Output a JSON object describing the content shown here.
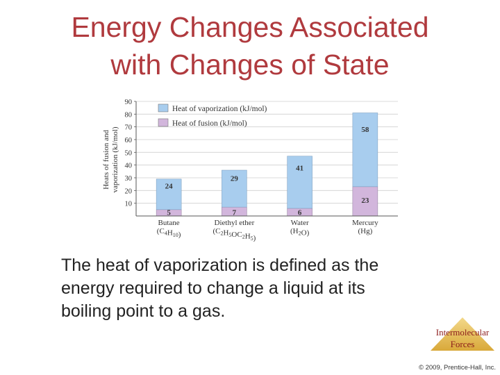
{
  "slide": {
    "title_line1": "Energy Changes Associated",
    "title_line2": "with Changes of State",
    "body_line1": "The heat of vaporization is defined as the",
    "body_line2": "energy required to change a liquid at its",
    "body_line3": "boiling point to a gas.",
    "badge_line1": "Intermolecular",
    "badge_line2": "Forces",
    "copyright": "© 2009, Prentice-Hall, Inc."
  },
  "colors": {
    "title": "#b03a3e",
    "vaporization": "#a8cdee",
    "fusion": "#d2b6dc",
    "badge": "#e8c25a"
  },
  "chart_data": {
    "type": "bar",
    "stacked": true,
    "categories": [
      {
        "name": "Butane",
        "formula": [
          [
            "C",
            ""
          ],
          [
            "4",
            "sub"
          ],
          [
            "H",
            ""
          ],
          [
            "10",
            "sub"
          ]
        ]
      },
      {
        "name": "Diethyl ether",
        "formula": [
          [
            "C",
            ""
          ],
          [
            "2",
            "sub"
          ],
          [
            "H",
            ""
          ],
          [
            "5",
            "sub"
          ],
          [
            "OC",
            ""
          ],
          [
            "2",
            "sub"
          ],
          [
            "H",
            ""
          ],
          [
            "5",
            "sub"
          ]
        ]
      },
      {
        "name": "Water",
        "formula": [
          [
            "H",
            ""
          ],
          [
            "2",
            "sub"
          ],
          [
            "O",
            ""
          ]
        ]
      },
      {
        "name": "Mercury",
        "formula": [
          [
            "Hg",
            ""
          ]
        ]
      }
    ],
    "series": [
      {
        "name": "Heat of fusion (kJ/mol)",
        "values": [
          5,
          7,
          6,
          23
        ]
      },
      {
        "name": "Heat of vaporization (kJ/mol)",
        "values": [
          24,
          29,
          41,
          58
        ]
      }
    ],
    "ylabel_line1": "Heats of fusion and",
    "ylabel_line2": "vaporization (kJ/mol)",
    "yticks": [
      10,
      20,
      30,
      40,
      50,
      60,
      70,
      80,
      90
    ],
    "ylim": [
      0,
      90
    ],
    "grid": true,
    "legend": "top-left"
  }
}
